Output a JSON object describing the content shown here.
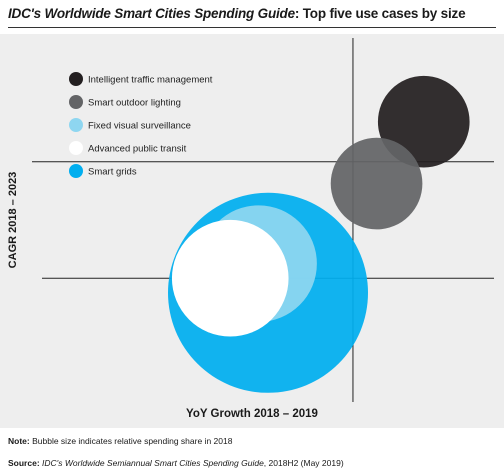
{
  "title": {
    "italic_part": "IDC's Worldwide Smart Cities Spending Guide",
    "rest": ": Top five use cases by size"
  },
  "chart_data": {
    "type": "scatter",
    "subtype": "bubble",
    "xlabel": "YoY Growth 2018 – 2019",
    "ylabel": "CAGR 2018 – 2023",
    "axis_ticks": "none",
    "grid": "quadrant divider lines",
    "legend_position": "top-left",
    "bubble_size_meaning": "relative spending share in 2018",
    "series": [
      {
        "name": "Intelligent traffic management",
        "color": "#231f20",
        "x": 0.83,
        "y": 0.77,
        "size": 0.21
      },
      {
        "name": "Smart outdoor lighting",
        "color": "#636466",
        "x": 0.73,
        "y": 0.6,
        "size": 0.21
      },
      {
        "name": "Fixed visual surveillance",
        "color": "#8ed6f0",
        "x": 0.48,
        "y": 0.38,
        "size": 0.34
      },
      {
        "name": "Advanced public transit",
        "color": "#ffffff",
        "x": 0.42,
        "y": 0.34,
        "size": 0.34
      },
      {
        "name": "Smart grids",
        "color": "#00aeef",
        "x": 0.5,
        "y": 0.3,
        "size": 1.0
      }
    ]
  },
  "note": {
    "label": "Note:",
    "text": " Bubble size indicates relative spending share in 2018"
  },
  "source": {
    "label": "Source:",
    "italic": " IDC's Worldwide Semiannual Smart Cities Spending Guide",
    "text": ", 2018H2 (May 2019)"
  }
}
